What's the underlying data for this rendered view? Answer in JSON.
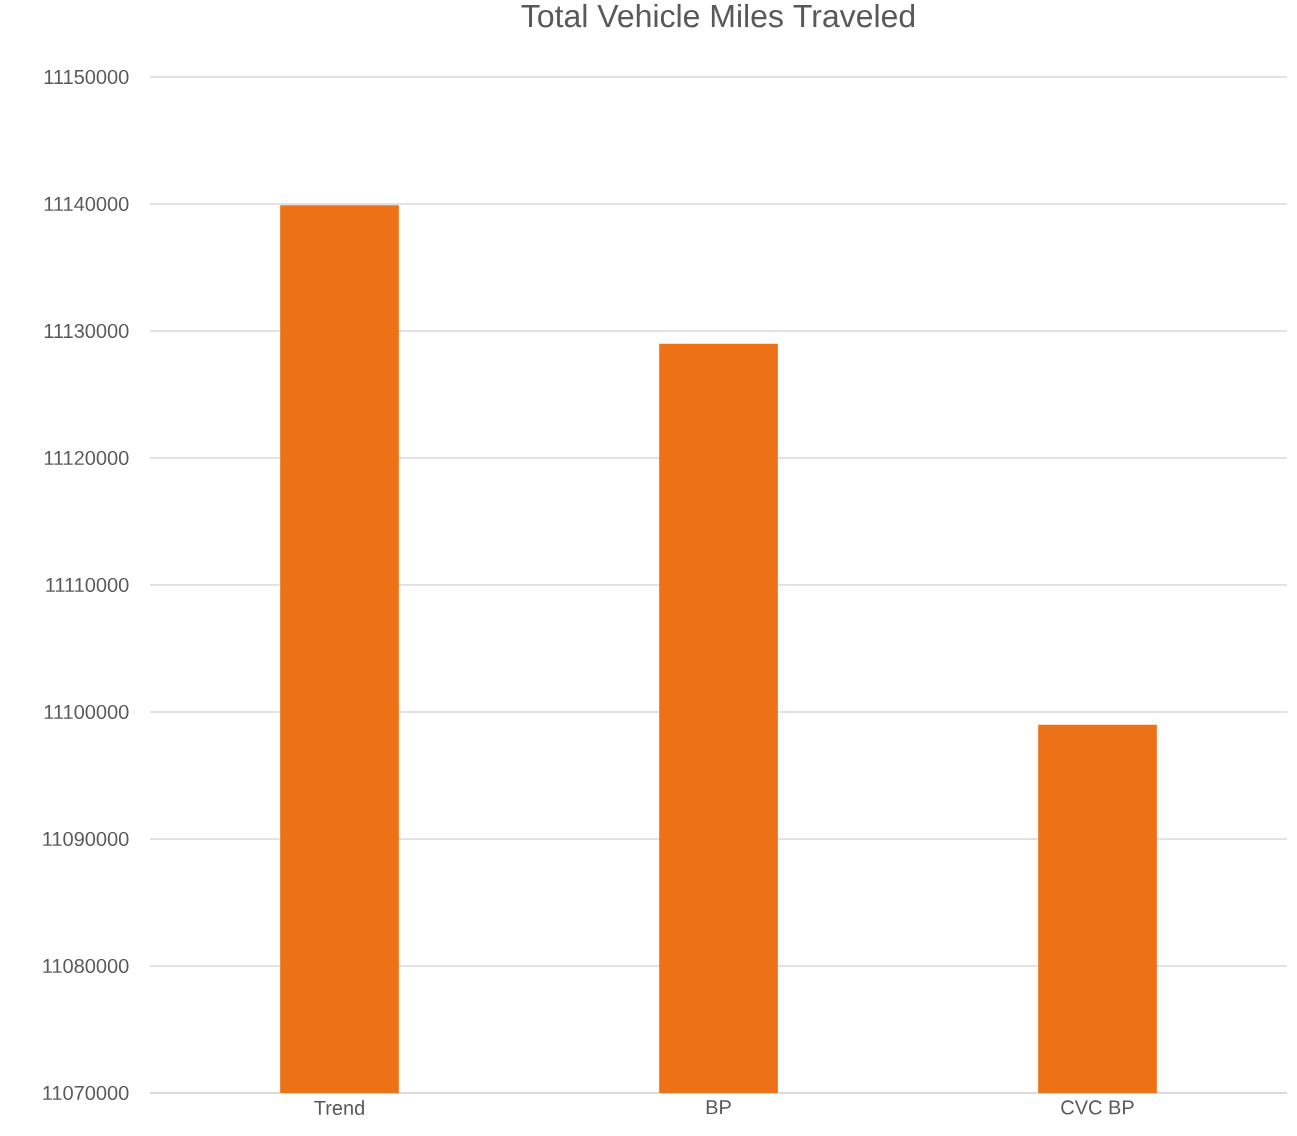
{
  "chart_data": {
    "type": "bar",
    "title": "Total Vehicle Miles Traveled",
    "categories": [
      "Trend",
      "BP",
      "CVC BP"
    ],
    "values": [
      11139900,
      11129000,
      11099000
    ],
    "color": "#ec7117",
    "ylim": [
      11070000,
      11150000
    ],
    "yticks": [
      11070000,
      11080000,
      11090000,
      11100000,
      11110000,
      11120000,
      11130000,
      11140000,
      11150000
    ],
    "grid": "y"
  }
}
